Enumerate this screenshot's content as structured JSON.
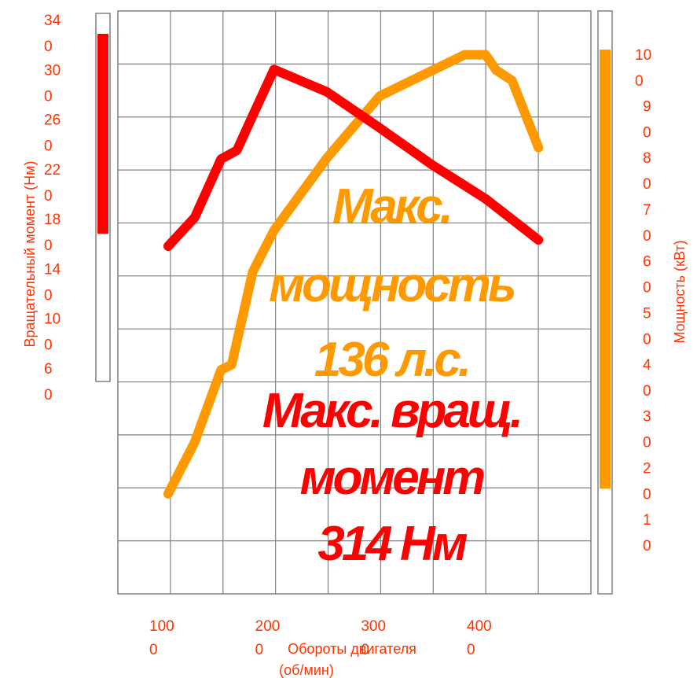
{
  "chart_data": {
    "type": "line",
    "xlabel": "Обороты двигателя (об/мин)",
    "ylabel_left": "Вращательный момент (Нм)",
    "ylabel_right": "Мощность (кВт)",
    "x_ticks": [
      "1000",
      "2000",
      "3000",
      "4000"
    ],
    "y_left_ticks": [
      "60",
      "100",
      "140",
      "180",
      "220",
      "260",
      "300",
      "340"
    ],
    "y_right_ticks": [
      "10",
      "20",
      "30",
      "40",
      "50",
      "60",
      "70",
      "80",
      "90",
      "100"
    ],
    "xlim": [
      500,
      5500
    ],
    "ylim_left": [
      20,
      340
    ],
    "ylim_right": [
      0,
      110
    ],
    "grid": true,
    "torque_range_bar": [
      180,
      340
    ],
    "power_range_bar": [
      20,
      105
    ],
    "series": [
      {
        "key": "torque",
        "axis": "left",
        "color": "#ff0000",
        "x": [
          1000,
          1250,
          1500,
          1650,
          1800,
          2000,
          2500,
          3000,
          3500,
          4000,
          4500
        ],
        "y": [
          170,
          193,
          240,
          247,
          275,
          312,
          294,
          265,
          235,
          208,
          175
        ]
      },
      {
        "key": "power",
        "axis": "right",
        "color": "#ff9900",
        "x": [
          1000,
          1250,
          1500,
          1600,
          1800,
          2000,
          2500,
          3000,
          3500,
          3800,
          4000,
          4100,
          4250,
          4500
        ],
        "y": [
          19,
          29,
          43,
          44,
          62,
          70,
          84,
          96,
          101,
          104,
          104,
          101,
          99,
          86
        ]
      }
    ],
    "annotations": [
      {
        "key": "max_power",
        "color": "#ff9900",
        "lines": [
          "Макс.",
          "мощность",
          "136 л.с."
        ]
      },
      {
        "key": "max_torque",
        "color": "#ff0000",
        "lines": [
          "Макс. вращ.",
          "момент",
          "314 Нм"
        ]
      }
    ]
  }
}
